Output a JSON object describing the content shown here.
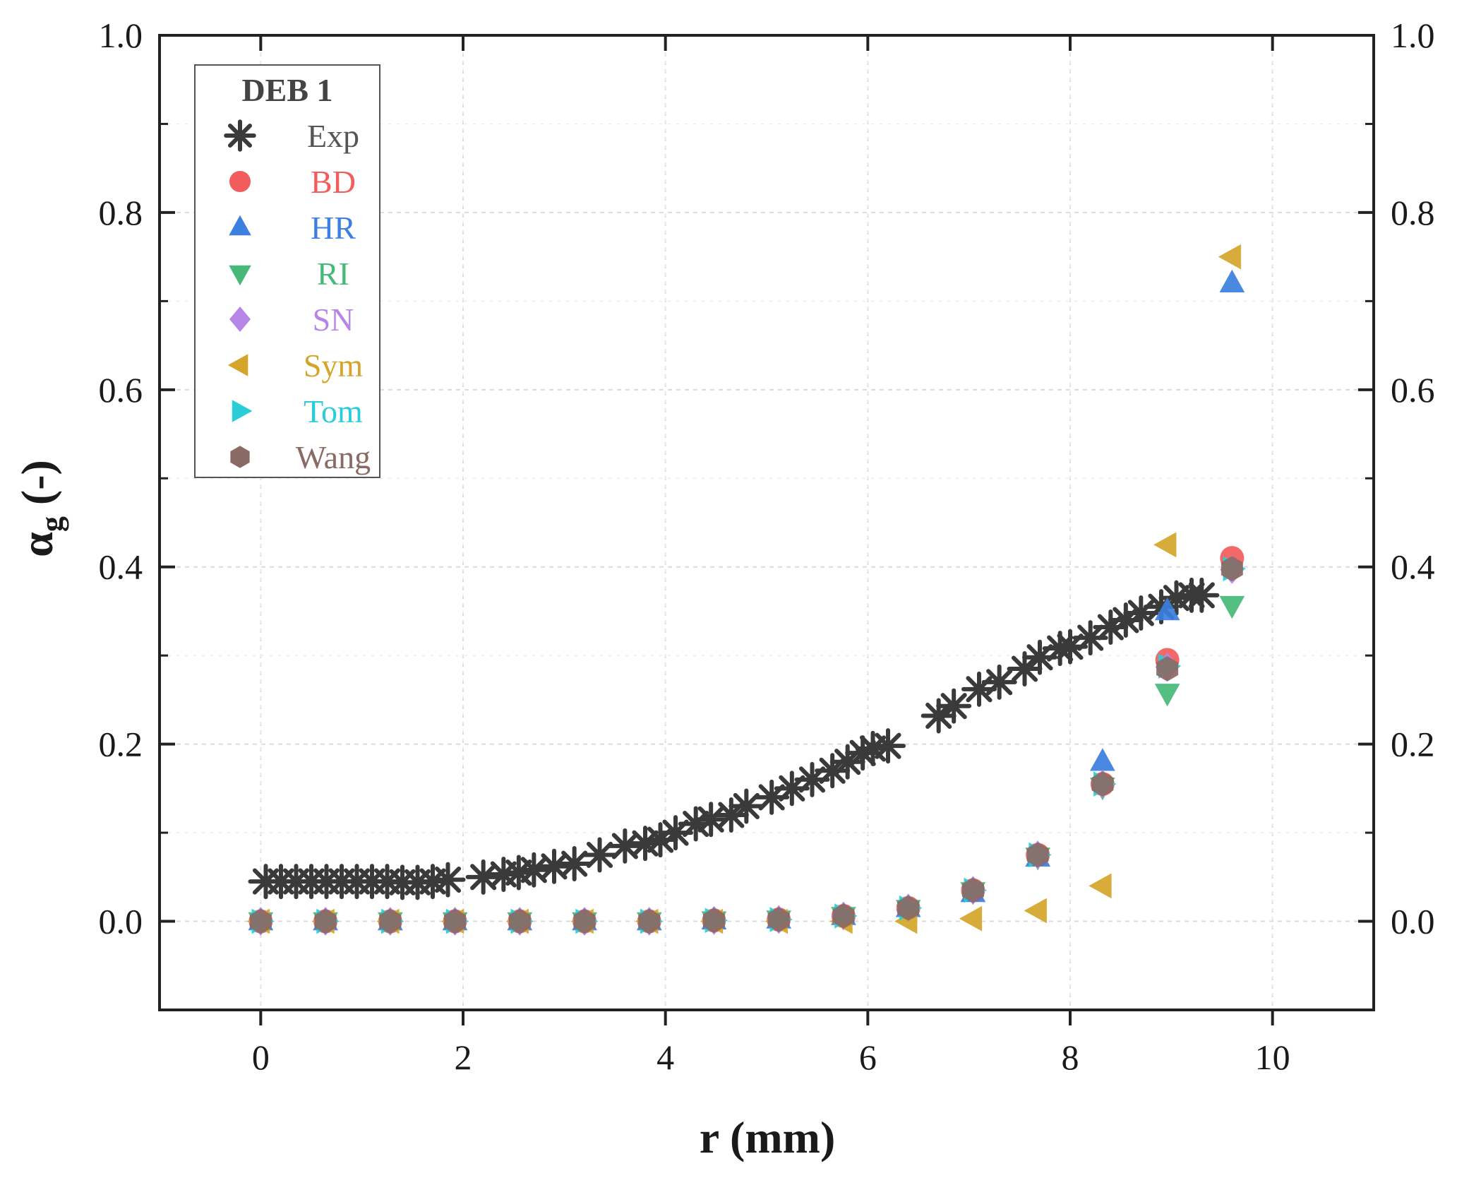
{
  "chart_data": {
    "type": "scatter",
    "title": "",
    "xlabel": "r (mm)",
    "ylabel_main": "α",
    "ylabel_sub": "g",
    "ylabel_tail": "(-)",
    "xlim": [
      -1,
      11
    ],
    "ylim": [
      -0.1,
      1.0
    ],
    "xticks": [
      0,
      2,
      4,
      6,
      8,
      10
    ],
    "xtick_labels": [
      "0",
      "2",
      "4",
      "6",
      "8",
      "10"
    ],
    "yticks": [
      0.0,
      0.2,
      0.4,
      0.6,
      0.8,
      1.0
    ],
    "ytick_labels": [
      "0.0",
      "0.2",
      "0.4",
      "0.6",
      "0.8",
      "1.0"
    ],
    "grid": true,
    "legend": {
      "title": "DEB 1",
      "position": "top-left"
    },
    "series": [
      {
        "name": "Exp",
        "marker": "asterisk",
        "color": "#3a3a3a",
        "x": [
          0.05,
          0.2,
          0.35,
          0.5,
          0.65,
          0.8,
          0.95,
          1.1,
          1.25,
          1.4,
          1.55,
          1.7,
          1.85,
          2.2,
          2.4,
          2.55,
          2.7,
          2.9,
          3.1,
          3.35,
          3.6,
          3.8,
          3.95,
          4.1,
          4.3,
          4.45,
          4.65,
          4.8,
          5.05,
          5.25,
          5.45,
          5.65,
          5.8,
          5.95,
          6.05,
          6.2,
          6.7,
          6.85,
          7.1,
          7.3,
          7.55,
          7.7,
          7.9,
          8.0,
          8.2,
          8.4,
          8.55,
          8.7,
          8.9,
          9.05,
          9.2,
          9.3
        ],
        "y": [
          0.045,
          0.045,
          0.045,
          0.045,
          0.045,
          0.045,
          0.045,
          0.045,
          0.045,
          0.044,
          0.044,
          0.045,
          0.047,
          0.05,
          0.053,
          0.055,
          0.058,
          0.062,
          0.065,
          0.075,
          0.085,
          0.088,
          0.092,
          0.1,
          0.11,
          0.115,
          0.12,
          0.13,
          0.14,
          0.15,
          0.16,
          0.17,
          0.18,
          0.19,
          0.195,
          0.198,
          0.232,
          0.243,
          0.262,
          0.27,
          0.285,
          0.298,
          0.308,
          0.31,
          0.32,
          0.332,
          0.34,
          0.348,
          0.355,
          0.365,
          0.368,
          0.368
        ]
      },
      {
        "name": "BD",
        "marker": "circle",
        "color": "#f25c5c",
        "x": [
          0.0,
          0.64,
          1.28,
          1.92,
          2.56,
          3.2,
          3.84,
          4.48,
          5.12,
          5.76,
          6.4,
          7.04,
          7.68,
          8.32,
          8.96,
          9.6
        ],
        "y": [
          0.0,
          0.0,
          0.0,
          0.0,
          0.0,
          0.0,
          0.0,
          0.001,
          0.002,
          0.006,
          0.015,
          0.035,
          0.075,
          0.155,
          0.295,
          0.41
        ]
      },
      {
        "name": "HR",
        "marker": "triangle-up",
        "color": "#3b7fe0",
        "x": [
          0.0,
          0.64,
          1.28,
          1.92,
          2.56,
          3.2,
          3.84,
          4.48,
          5.12,
          5.76,
          6.4,
          7.04,
          7.68,
          8.32,
          8.96,
          9.6
        ],
        "y": [
          0.0,
          0.0,
          0.0,
          0.0,
          0.0,
          0.0,
          0.0,
          0.001,
          0.002,
          0.006,
          0.015,
          0.032,
          0.072,
          0.18,
          0.35,
          0.72
        ]
      },
      {
        "name": "RI",
        "marker": "triangle-down",
        "color": "#46b978",
        "x": [
          0.0,
          0.64,
          1.28,
          1.92,
          2.56,
          3.2,
          3.84,
          4.48,
          5.12,
          5.76,
          6.4,
          7.04,
          7.68,
          8.32,
          8.96,
          9.6
        ],
        "y": [
          0.0,
          0.0,
          0.0,
          0.0,
          0.0,
          0.0,
          0.0,
          0.001,
          0.002,
          0.006,
          0.014,
          0.034,
          0.073,
          0.152,
          0.258,
          0.357
        ]
      },
      {
        "name": "SN",
        "marker": "diamond",
        "color": "#b784e8",
        "x": [
          0.0,
          0.64,
          1.28,
          1.92,
          2.56,
          3.2,
          3.84,
          4.48,
          5.12,
          5.76,
          6.4,
          7.04,
          7.68,
          8.32,
          8.96,
          9.6
        ],
        "y": [
          0.0,
          0.0,
          0.0,
          0.0,
          0.0,
          0.0,
          0.0,
          0.001,
          0.002,
          0.006,
          0.015,
          0.035,
          0.075,
          0.155,
          0.287,
          0.397
        ]
      },
      {
        "name": "Sym",
        "marker": "triangle-left",
        "color": "#d4a52a",
        "x": [
          0.0,
          0.64,
          1.28,
          1.92,
          2.56,
          3.2,
          3.84,
          4.48,
          5.12,
          5.76,
          6.4,
          7.04,
          7.68,
          8.32,
          8.96,
          9.6
        ],
        "y": [
          0.0,
          0.0,
          0.0,
          0.0,
          0.0,
          0.0,
          0.0,
          0.0,
          0.0,
          0.0,
          0.0,
          0.003,
          0.012,
          0.04,
          0.425,
          0.75
        ]
      },
      {
        "name": "Tom",
        "marker": "triangle-right",
        "color": "#28cdd8",
        "x": [
          0.0,
          0.64,
          1.28,
          1.92,
          2.56,
          3.2,
          3.84,
          4.48,
          5.12,
          5.76,
          6.4,
          7.04,
          7.68,
          8.32,
          8.96,
          9.6
        ],
        "y": [
          0.0,
          0.0,
          0.0,
          0.0,
          0.0,
          0.0,
          0.0,
          0.001,
          0.002,
          0.006,
          0.015,
          0.035,
          0.075,
          0.155,
          0.288,
          0.398
        ]
      },
      {
        "name": "Wang",
        "marker": "hexagon",
        "color": "#8a6a64",
        "x": [
          0.0,
          0.64,
          1.28,
          1.92,
          2.56,
          3.2,
          3.84,
          4.48,
          5.12,
          5.76,
          6.4,
          7.04,
          7.68,
          8.32,
          8.96,
          9.6
        ],
        "y": [
          0.0,
          0.0,
          0.0,
          0.0,
          0.0,
          0.0,
          0.0,
          0.001,
          0.002,
          0.006,
          0.015,
          0.035,
          0.075,
          0.155,
          0.285,
          0.398
        ]
      }
    ]
  }
}
